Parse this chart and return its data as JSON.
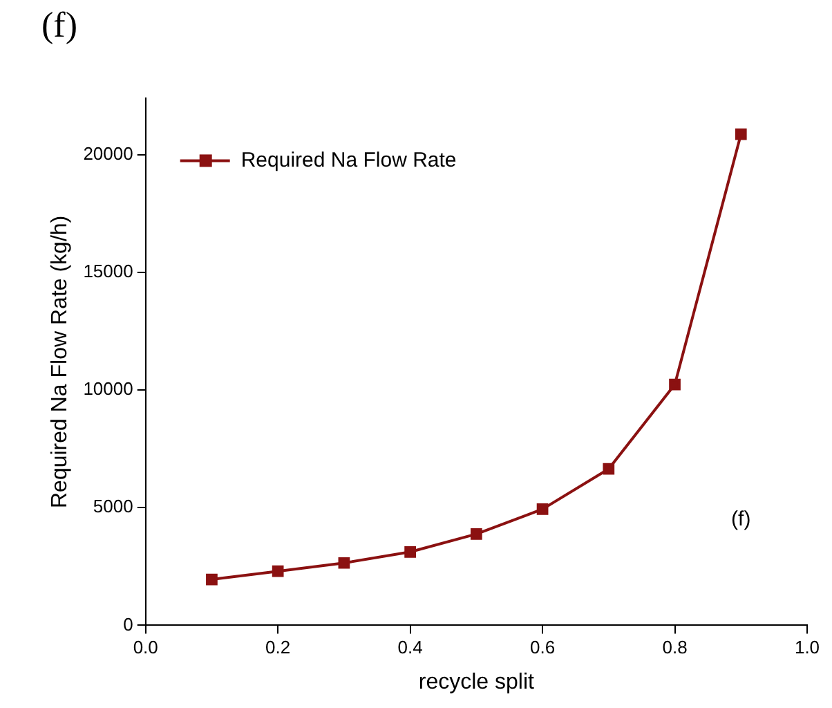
{
  "chart_data": {
    "type": "line",
    "title": "(f)",
    "xlabel": "recycle split",
    "ylabel": "Required Na Flow Rate (kg/h)",
    "x": [
      0.1,
      0.2,
      0.3,
      0.4,
      0.5,
      0.6,
      0.7,
      0.8,
      0.9
    ],
    "series": [
      {
        "name": "Required Na Flow Rate",
        "color": "#8b1111",
        "values": [
          1950,
          2300,
          2650,
          3120,
          3880,
          4940,
          6650,
          10240,
          20880
        ]
      }
    ],
    "xlim": [
      0,
      1
    ],
    "xticks": [
      {
        "value": 0,
        "label": "0.0"
      },
      {
        "value": 0.2,
        "label": "0.2"
      },
      {
        "value": 0.4,
        "label": "0.4"
      },
      {
        "value": 0.6,
        "label": "0.6"
      },
      {
        "value": 0.8,
        "label": "0.8"
      },
      {
        "value": 1,
        "label": "1.0"
      }
    ],
    "ylim": [
      0,
      22400
    ],
    "yticks": [
      0,
      5000,
      10000,
      15000,
      20000
    ],
    "annotations": [
      "(f)"
    ],
    "grid": false,
    "legend": "top left",
    "marker": "square",
    "line_style": "solid"
  }
}
